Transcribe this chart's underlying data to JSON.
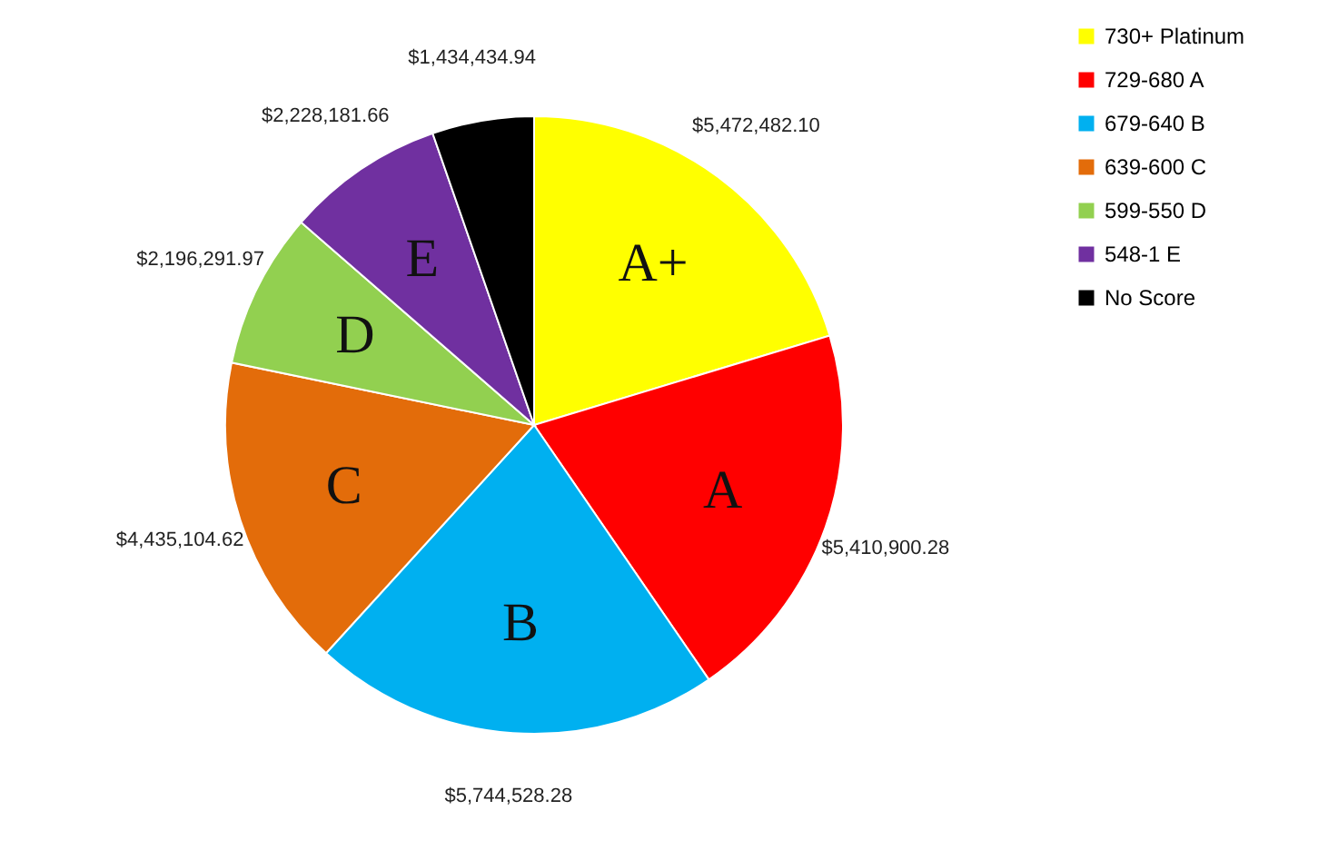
{
  "chart_data": {
    "type": "pie",
    "categories": [
      "730+ Platinum",
      "729-680 A",
      "679-640 B",
      "639-600 C",
      "599-550 D",
      "548-1 E",
      "No Score"
    ],
    "values": [
      5472482.1,
      5410900.28,
      5744528.28,
      4435104.62,
      2196291.97,
      2228181.66,
      1434434.94
    ],
    "colors": [
      "#ffff00",
      "#ff0000",
      "#00b0f0",
      "#e36c0a",
      "#92d050",
      "#7030a0",
      "#000000"
    ],
    "value_labels": [
      "$5,472,482.10",
      "$5,410,900.28",
      "$5,744,528.28",
      "$4,435,104.62",
      "$2,196,291.97",
      "$2,228,181.66",
      "$1,434,434.94"
    ],
    "annotations": [
      "A+",
      "A",
      "B",
      "C",
      "D",
      "E"
    ],
    "legend": "right"
  }
}
